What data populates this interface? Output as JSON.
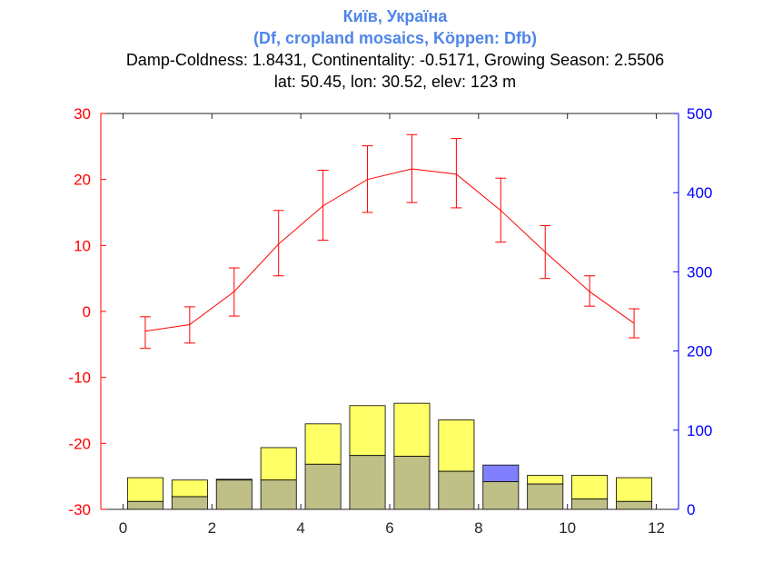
{
  "chart_data": {
    "type": "bar+line",
    "title_lines": [
      "Київ, Україна",
      "(Df, cropland mosaics, Köppen: Dfb)"
    ],
    "subtitle_lines": [
      "Damp-Coldness: 1.8431, Continentality: -0.5171, Growing Season: 2.5506",
      "lat: 50.45, lon: 30.52, elev: 123 m"
    ],
    "x_ticks": [
      0,
      2,
      4,
      6,
      8,
      10,
      12
    ],
    "xlim": [
      -0.5,
      12.5
    ],
    "y_left": {
      "lim": [
        -30,
        30
      ],
      "ticks": [
        -30,
        -20,
        -10,
        0,
        10,
        20,
        30
      ],
      "color": "#ff0000"
    },
    "y_right": {
      "lim": [
        0,
        500
      ],
      "ticks": [
        0,
        100,
        200,
        300,
        400,
        500
      ],
      "color": "#0000ff"
    },
    "temperature": {
      "x": [
        0.5,
        1.5,
        2.5,
        3.5,
        4.5,
        5.5,
        6.5,
        7.5,
        8.5,
        9.5,
        10.5,
        11.5
      ],
      "mean": [
        -3.0,
        -2.0,
        3.0,
        10.2,
        16.0,
        20.0,
        21.6,
        20.8,
        15.3,
        9.0,
        3.0,
        -1.8
      ],
      "upper": [
        -0.8,
        0.7,
        6.6,
        15.3,
        21.4,
        25.1,
        26.8,
        26.2,
        20.2,
        13.0,
        5.4,
        0.4
      ],
      "lower": [
        -5.6,
        -4.8,
        -0.7,
        5.4,
        10.8,
        15.0,
        16.5,
        15.7,
        10.5,
        5.0,
        0.8,
        -4.0
      ],
      "color": "#ff0000"
    },
    "bars": {
      "x": [
        0.5,
        1.5,
        2.5,
        3.5,
        4.5,
        5.5,
        6.5,
        7.5,
        8.5,
        9.5,
        10.5,
        11.5
      ],
      "precipitation": [
        40,
        37,
        38,
        78,
        108,
        131,
        134,
        113,
        35,
        43,
        43,
        40
      ],
      "evapotranspiration": [
        10,
        16,
        37,
        37,
        57,
        68,
        67,
        48,
        56,
        32,
        13,
        10
      ],
      "precip_color": "#ffff66",
      "pet_color": "#8080ff",
      "overlap_color": "#bfbf88"
    }
  }
}
